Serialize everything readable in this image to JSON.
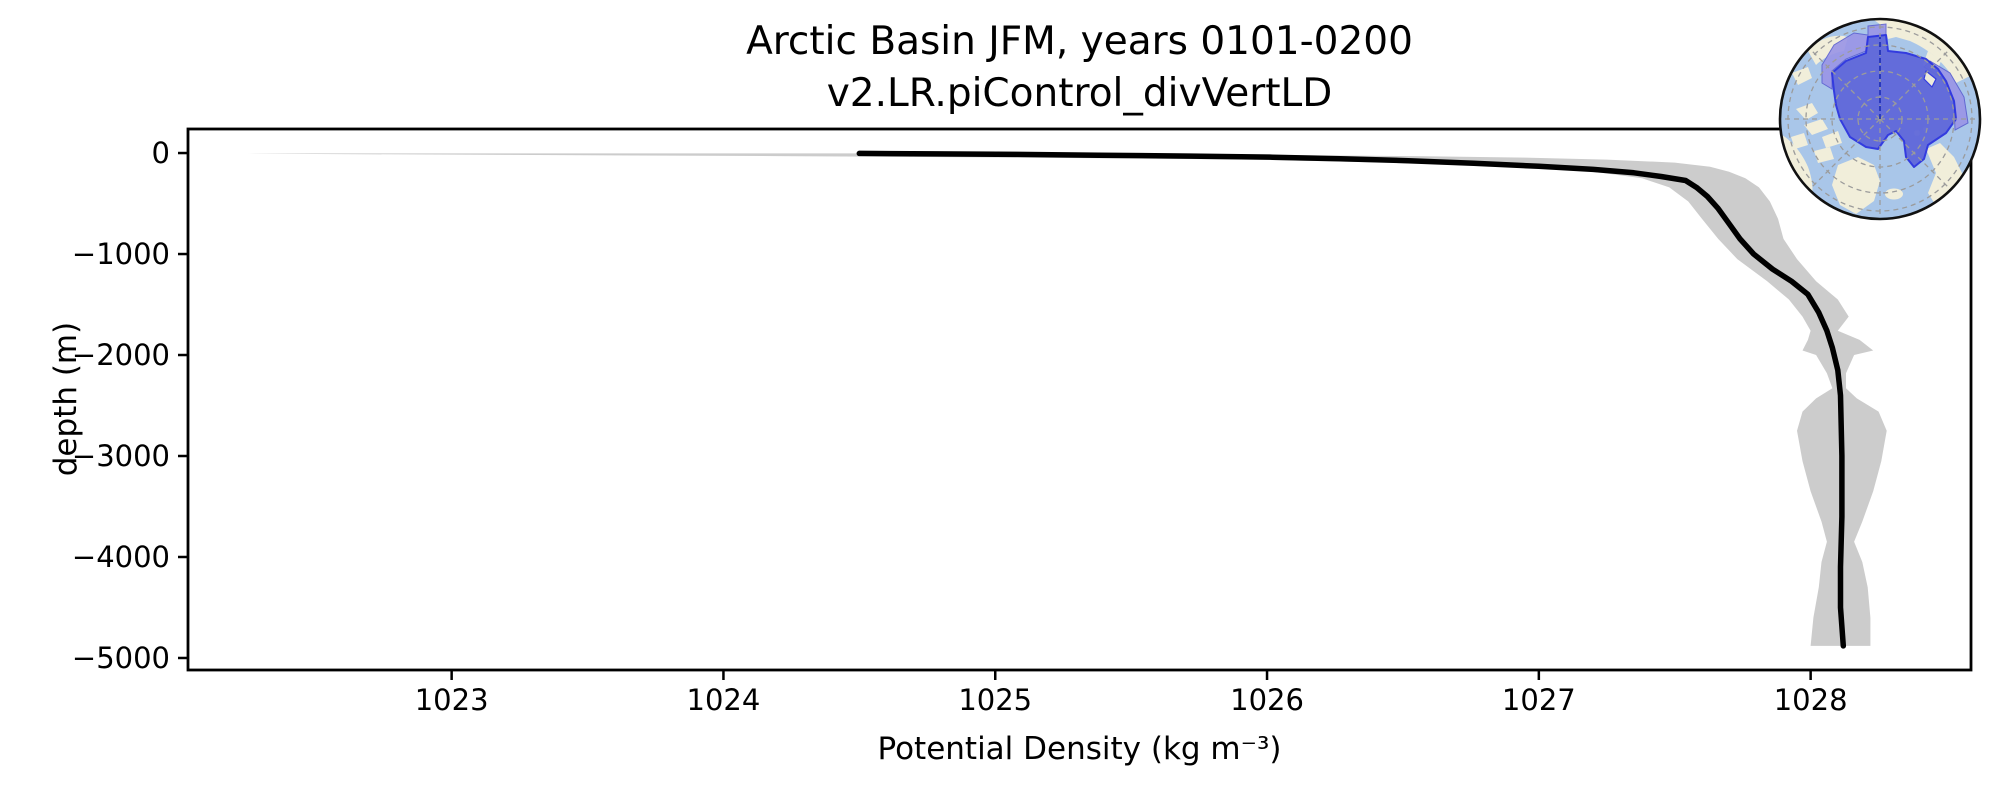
{
  "page": {
    "background": "#ffffff"
  },
  "chart_data": {
    "type": "line",
    "title_line1": "Arctic Basin JFM, years 0101-0200",
    "title_line2": "v2.LR.piControl_divVertLD",
    "xlabel": "Potential Density (kg m⁻³)",
    "ylabel": "depth (m)",
    "xlim": [
      1022.03,
      1028.59
    ],
    "ylim": [
      -5119,
      238
    ],
    "xticks": [
      1023,
      1024,
      1025,
      1026,
      1027,
      1028
    ],
    "xtick_labels": [
      "1023",
      "1024",
      "1025",
      "1026",
      "1027",
      "1028"
    ],
    "yticks": [
      0,
      -1000,
      -2000,
      -3000,
      -4000,
      -5000
    ],
    "ytick_labels": [
      "0",
      "−1000",
      "−2000",
      "−3000",
      "−4000",
      "−5000"
    ],
    "grid": false,
    "legend": "none",
    "series": [
      {
        "name": "mean_profile",
        "color": "#000000",
        "linewidth": 5.5,
        "points_density_depth": [
          [
            1024.5,
            -4
          ],
          [
            1024.78,
            -9
          ],
          [
            1025.08,
            -14
          ],
          [
            1025.38,
            -21
          ],
          [
            1025.72,
            -30
          ],
          [
            1026.02,
            -41
          ],
          [
            1026.27,
            -56
          ],
          [
            1026.52,
            -76
          ],
          [
            1026.76,
            -101
          ],
          [
            1027.0,
            -131
          ],
          [
            1027.2,
            -162
          ],
          [
            1027.35,
            -196
          ],
          [
            1027.45,
            -232
          ],
          [
            1027.54,
            -272
          ],
          [
            1027.58,
            -340
          ],
          [
            1027.62,
            -430
          ],
          [
            1027.66,
            -550
          ],
          [
            1027.7,
            -700
          ],
          [
            1027.74,
            -850
          ],
          [
            1027.79,
            -1000
          ],
          [
            1027.86,
            -1150
          ],
          [
            1027.93,
            -1270
          ],
          [
            1027.99,
            -1400
          ],
          [
            1028.03,
            -1580
          ],
          [
            1028.06,
            -1760
          ],
          [
            1028.08,
            -1930
          ],
          [
            1028.1,
            -2150
          ],
          [
            1028.11,
            -2400
          ],
          [
            1028.115,
            -3000
          ],
          [
            1028.115,
            -3600
          ],
          [
            1028.11,
            -4100
          ],
          [
            1028.11,
            -4500
          ],
          [
            1028.12,
            -4880
          ]
        ]
      }
    ],
    "envelope": {
      "name": "interannual_spread",
      "color": "#cccccc",
      "points_depth_min_max": [
        [
          -4,
          1022.25,
          1024.7
        ],
        [
          -10,
          1022.5,
          1025.2
        ],
        [
          -18,
          1023.2,
          1025.95
        ],
        [
          -30,
          1024.2,
          1026.55
        ],
        [
          -45,
          1025.1,
          1026.95
        ],
        [
          -65,
          1025.95,
          1027.25
        ],
        [
          -95,
          1026.45,
          1027.5
        ],
        [
          -135,
          1026.95,
          1027.63
        ],
        [
          -185,
          1027.2,
          1027.7
        ],
        [
          -250,
          1027.38,
          1027.76
        ],
        [
          -340,
          1027.48,
          1027.81
        ],
        [
          -480,
          1027.55,
          1027.85
        ],
        [
          -650,
          1027.6,
          1027.88
        ],
        [
          -850,
          1027.66,
          1027.9
        ],
        [
          -1050,
          1027.73,
          1027.95
        ],
        [
          -1270,
          1027.84,
          1028.02
        ],
        [
          -1450,
          1027.92,
          1028.1
        ],
        [
          -1620,
          1027.97,
          1028.14
        ],
        [
          -1760,
          1028.0,
          1028.1
        ],
        [
          -1850,
          1027.99,
          1028.18
        ],
        [
          -1955,
          1027.97,
          1028.23
        ],
        [
          -2000,
          1028.02,
          1028.16
        ],
        [
          -2180,
          1028.06,
          1028.13
        ],
        [
          -2330,
          1028.08,
          1028.13
        ],
        [
          -2430,
          1028.02,
          1028.17
        ],
        [
          -2560,
          1027.97,
          1028.25
        ],
        [
          -2750,
          1027.95,
          1028.28
        ],
        [
          -3050,
          1027.97,
          1028.26
        ],
        [
          -3350,
          1028.0,
          1028.23
        ],
        [
          -3650,
          1028.04,
          1028.19
        ],
        [
          -3850,
          1028.06,
          1028.16
        ],
        [
          -4050,
          1028.04,
          1028.19
        ],
        [
          -4300,
          1028.03,
          1028.21
        ],
        [
          -4600,
          1028.01,
          1028.22
        ],
        [
          -4880,
          1028.0,
          1028.22
        ]
      ]
    },
    "inset": {
      "description": "north-polar map highlighting the Arctic Basin region",
      "ocean_color": "#a9c6e9",
      "land_color": "#f1eeda",
      "region_fill": "#5f68da",
      "region_outline": "#2d34df",
      "outer_region_fill": "#9a94e6",
      "graticule_color": "#9b9b9b",
      "meridian_color": "#2233bb",
      "rim_color": "#111111"
    }
  }
}
